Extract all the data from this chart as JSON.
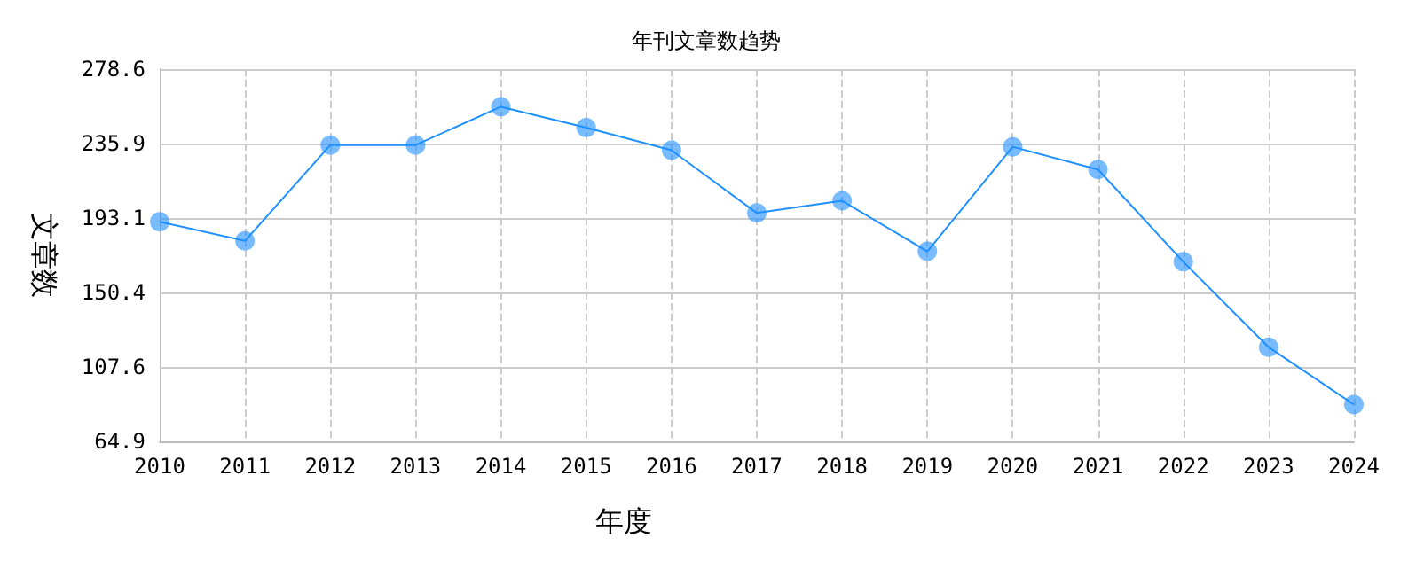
{
  "chart_data": {
    "type": "line",
    "title": "年刊文章数趋势",
    "xlabel": "年度",
    "ylabel": "文章数",
    "categories": [
      "2010",
      "2011",
      "2012",
      "2013",
      "2014",
      "2015",
      "2016",
      "2017",
      "2018",
      "2019",
      "2020",
      "2021",
      "2022",
      "2023",
      "2024"
    ],
    "series": [
      {
        "color": "#1e90ff",
        "values": [
          191,
          180,
          235,
          235,
          257,
          245,
          232,
          196,
          203,
          174,
          234,
          221,
          168,
          119,
          86
        ]
      }
    ],
    "ylim": [
      64.9,
      278.6
    ],
    "yticks": [
      64.9,
      107.6,
      150.4,
      193.1,
      235.9,
      278.6
    ],
    "grid": true,
    "marker": "circle",
    "line_style": "solid"
  }
}
